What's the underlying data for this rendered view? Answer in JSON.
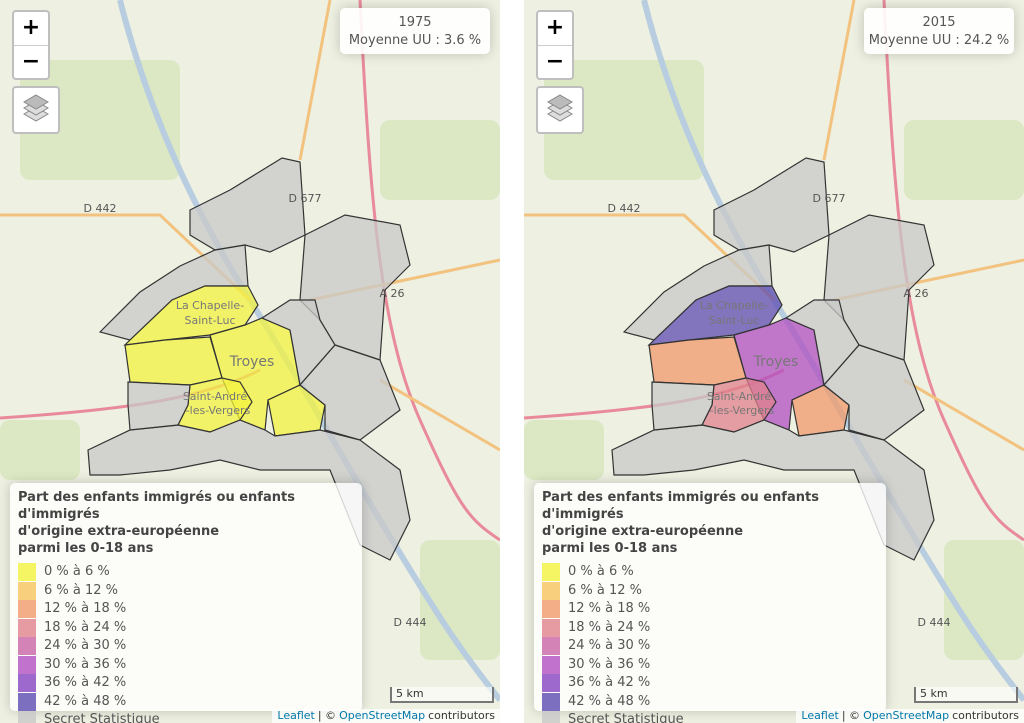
{
  "maps": [
    {
      "zoom_in": "+",
      "zoom_out": "−",
      "info": {
        "year": "1975",
        "average": "Moyenne UU : 3.6 %"
      },
      "labels": [
        "D 442",
        "D 677",
        "A 26",
        "La Chapelle-",
        "Saint-Luc",
        "Troyes",
        "Saint-André",
        "-les-Vergers",
        "D 444"
      ],
      "legend": {
        "title": [
          "Part des enfants immigrés ou enfants d'immigrés",
          "d'origine extra-européenne",
          "parmi les 0-18 ans"
        ],
        "items": [
          {
            "label": "0 % à 6 %",
            "color": "#f3f33f"
          },
          {
            "label": "6 % à 12 %",
            "color": "#f6c35e"
          },
          {
            "label": "12 % à 18 %",
            "color": "#f09a6a"
          },
          {
            "label": "18 % à 24 %",
            "color": "#e0818c"
          },
          {
            "label": "24 % à 30 %",
            "color": "#c964a6"
          },
          {
            "label": "30 % à 36 %",
            "color": "#b04fc0"
          },
          {
            "label": "36 % à 42 %",
            "color": "#8443c0"
          },
          {
            "label": "42 % à 48 %",
            "color": "#5d4bb0"
          },
          {
            "label": "Secret Statistique",
            "color": "#c8c8c8"
          }
        ]
      },
      "scale": "5 km",
      "attribution": {
        "leaflet": "Leaflet",
        "sep": "| ©",
        "osm": "OpenStreetMap",
        "contributors": "contributors"
      }
    },
    {
      "zoom_in": "+",
      "zoom_out": "−",
      "info": {
        "year": "2015",
        "average": "Moyenne UU : 24.2 %"
      },
      "labels": [
        "D 442",
        "D 677",
        "A 26",
        "La Chapelle-",
        "Saint-Luc",
        "Troyes",
        "Saint-André",
        "-les-Vergers",
        "D 444"
      ],
      "legend": {
        "title": [
          "Part des enfants immigrés ou enfants d'immigrés",
          "d'origine extra-européenne",
          "parmi les 0-18 ans"
        ],
        "items": [
          {
            "label": "0 % à 6 %",
            "color": "#f3f33f"
          },
          {
            "label": "6 % à 12 %",
            "color": "#f6c35e"
          },
          {
            "label": "12 % à 18 %",
            "color": "#f09a6a"
          },
          {
            "label": "18 % à 24 %",
            "color": "#e0818c"
          },
          {
            "label": "24 % à 30 %",
            "color": "#c964a6"
          },
          {
            "label": "30 % à 36 %",
            "color": "#b04fc0"
          },
          {
            "label": "36 % à 42 %",
            "color": "#8443c0"
          },
          {
            "label": "42 % à 48 %",
            "color": "#5d4bb0"
          },
          {
            "label": "Secret Statistique",
            "color": "#c8c8c8"
          }
        ]
      },
      "scale": "5 km",
      "attribution": {
        "leaflet": "Leaflet",
        "sep": "| ©",
        "osm": "OpenStreetMap",
        "contributors": "contributors"
      }
    }
  ]
}
